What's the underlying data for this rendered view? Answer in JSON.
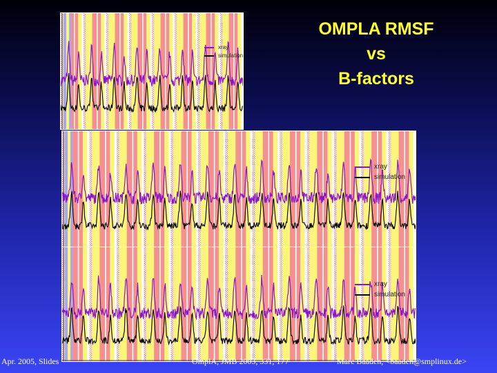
{
  "title": {
    "line1": "OMPLA RMSF",
    "line2": "vs",
    "line3": "B-factors"
  },
  "legend": {
    "xray": "xray",
    "simulation": "simulation"
  },
  "footer": {
    "left": "Apr. 2005, Slides",
    "center": "OmplA, JMB 2003, 331, 177",
    "right": "Marc Baaden, <baaden@smplinux.de>"
  },
  "colors": {
    "xray": "#8a14c8",
    "simulation": "#000000",
    "band_red": "#f59090",
    "band_yellow": "#fbf57a",
    "band_blue": "#a8a8f0",
    "band_dotted": "#f3c8c8",
    "title": "#ffff33"
  }
}
